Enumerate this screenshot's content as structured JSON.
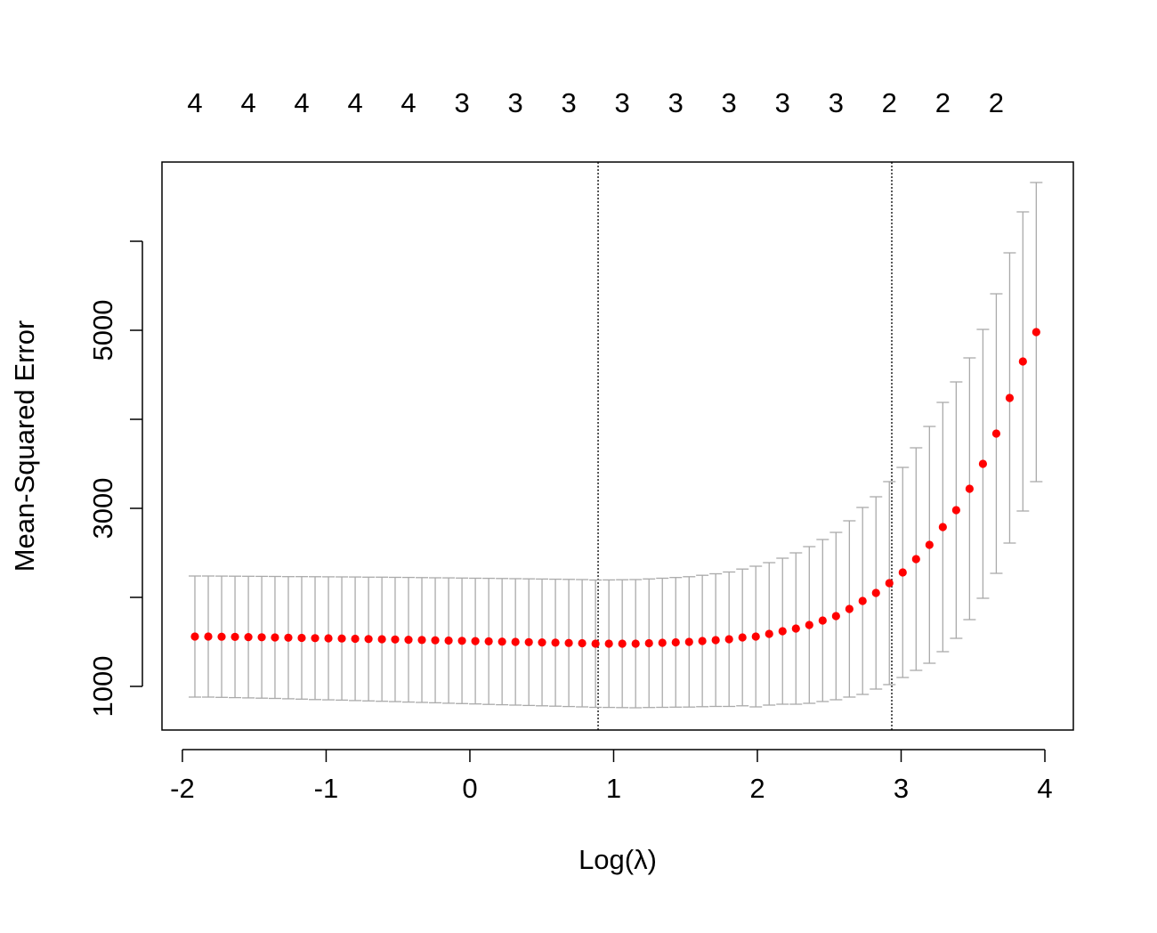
{
  "chart_data": {
    "type": "errorbar",
    "xlabel": "Log(λ)",
    "ylabel": "Mean-Squared Error",
    "x": [
      -1.913,
      -1.82,
      -1.727,
      -1.634,
      -1.541,
      -1.448,
      -1.356,
      -1.263,
      -1.17,
      -1.077,
      -0.984,
      -0.891,
      -0.798,
      -0.705,
      -0.612,
      -0.52,
      -0.427,
      -0.334,
      -0.241,
      -0.148,
      -0.055,
      0.038,
      0.131,
      0.224,
      0.317,
      0.41,
      0.502,
      0.595,
      0.688,
      0.781,
      0.874,
      0.967,
      1.06,
      1.153,
      1.246,
      1.339,
      1.432,
      1.525,
      1.617,
      1.71,
      1.803,
      1.896,
      1.989,
      2.082,
      2.175,
      2.268,
      2.361,
      2.454,
      2.547,
      2.64,
      2.732,
      2.825,
      2.918,
      3.011,
      3.104,
      3.197,
      3.29,
      3.383,
      3.476,
      3.569,
      3.662,
      3.755,
      3.847,
      3.94
    ],
    "values": [
      1560,
      1560,
      1558,
      1556,
      1554,
      1552,
      1550,
      1547,
      1545,
      1542,
      1540,
      1538,
      1535,
      1532,
      1530,
      1527,
      1524,
      1521,
      1518,
      1515,
      1512,
      1509,
      1506,
      1503,
      1500,
      1497,
      1494,
      1491,
      1488,
      1485,
      1480,
      1480,
      1480,
      1480,
      1485,
      1490,
      1495,
      1500,
      1510,
      1520,
      1530,
      1550,
      1560,
      1590,
      1620,
      1650,
      1690,
      1740,
      1790,
      1870,
      1960,
      2050,
      2160,
      2280,
      2430,
      2590,
      2790,
      2980,
      3220,
      3500,
      3840,
      4240,
      4650,
      4980
    ],
    "errors": [
      680,
      680,
      681,
      682,
      683,
      684,
      685,
      686,
      688,
      690,
      691,
      692,
      694,
      695,
      697,
      698,
      700,
      701,
      702,
      704,
      705,
      706,
      708,
      709,
      710,
      711,
      712,
      713,
      714,
      715,
      715,
      716,
      718,
      720,
      722,
      725,
      728,
      732,
      738,
      745,
      755,
      768,
      790,
      800,
      820,
      850,
      880,
      910,
      940,
      990,
      1050,
      1080,
      1140,
      1180,
      1250,
      1330,
      1400,
      1440,
      1470,
      1510,
      1570,
      1630,
      1680,
      1680
    ],
    "color": "#ff0000",
    "error_color": "#aaaaaa",
    "xlim": [
      -2.142,
      4.198
    ],
    "ylim": [
      510,
      6890
    ],
    "xticks": [
      -2,
      -1,
      0,
      1,
      2,
      3,
      4
    ],
    "yticks": [
      1000,
      3000,
      5000
    ],
    "yminorticks": [
      2000,
      4000,
      6000
    ],
    "vlines": [
      0.892,
      2.935
    ],
    "top_labels": {
      "x": [
        -1.913,
        -1.541,
        -1.17,
        -0.798,
        -0.427,
        -0.055,
        0.317,
        0.688,
        1.06,
        1.432,
        1.803,
        2.175,
        2.547,
        2.918,
        3.29,
        3.662
      ],
      "labels": [
        4,
        4,
        4,
        4,
        4,
        3,
        3,
        3,
        3,
        3,
        3,
        3,
        3,
        2,
        2,
        2
      ]
    }
  }
}
